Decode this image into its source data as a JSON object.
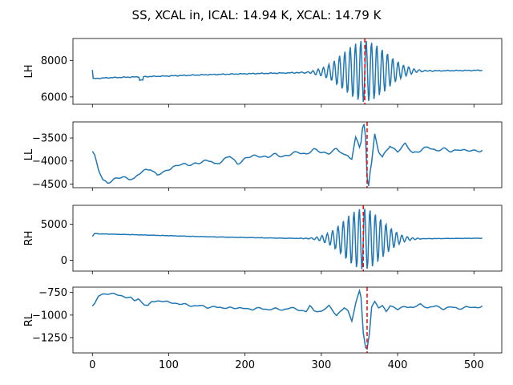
{
  "title": "SS, XCAL in, ICAL: 14.94 K, XCAL: 14.79 K",
  "colors": {
    "series": "#1f77b4",
    "marker": "#ff0000"
  },
  "chart_data": {
    "type": "line",
    "x_range": [
      0,
      511
    ],
    "xlim": [
      -25.5,
      536.5
    ],
    "x_ticks": [
      0,
      100,
      200,
      300,
      400,
      500
    ],
    "grid": false,
    "panels": [
      {
        "name": "LH",
        "ylabel": "LH",
        "ylim": [
          5600,
          9200
        ],
        "y_ticks": [
          6000,
          8000
        ],
        "vline_x": 357,
        "baseline_pts": [
          [
            0,
            7000
          ],
          [
            20,
            7050
          ],
          [
            60,
            7100
          ],
          [
            100,
            7150
          ],
          [
            150,
            7220
          ],
          [
            200,
            7270
          ],
          [
            250,
            7310
          ],
          [
            300,
            7360
          ],
          [
            330,
            7400
          ],
          [
            400,
            7420
          ],
          [
            450,
            7430
          ],
          [
            511,
            7460
          ]
        ],
        "start_spike": 7480,
        "bumps": [
          {
            "x": 64,
            "dy": -180,
            "w": 2
          }
        ],
        "burst": {
          "center": 357,
          "amp": 1700,
          "width": 28,
          "freq": 0.9
        }
      },
      {
        "name": "LL",
        "ylabel": "LL",
        "ylim": [
          -4580,
          -3150
        ],
        "y_ticks": [
          -4500,
          -4000,
          -3500
        ],
        "vline_x": 360,
        "pts": [
          [
            0,
            -3790
          ],
          [
            3,
            -3900
          ],
          [
            8,
            -4200
          ],
          [
            14,
            -4420
          ],
          [
            20,
            -4460
          ],
          [
            28,
            -4400
          ],
          [
            40,
            -4360
          ],
          [
            55,
            -4380
          ],
          [
            60,
            -4300
          ],
          [
            70,
            -4200
          ],
          [
            76,
            -4160
          ],
          [
            85,
            -4300
          ],
          [
            95,
            -4250
          ],
          [
            105,
            -4120
          ],
          [
            115,
            -4070
          ],
          [
            125,
            -4100
          ],
          [
            135,
            -4040
          ],
          [
            145,
            -4020
          ],
          [
            155,
            -4000
          ],
          [
            160,
            -4060
          ],
          [
            170,
            -4000
          ],
          [
            180,
            -3900
          ],
          [
            190,
            -4050
          ],
          [
            200,
            -3950
          ],
          [
            210,
            -3900
          ],
          [
            220,
            -3880
          ],
          [
            230,
            -3920
          ],
          [
            240,
            -3860
          ],
          [
            250,
            -3890
          ],
          [
            260,
            -3860
          ],
          [
            270,
            -3810
          ],
          [
            280,
            -3840
          ],
          [
            290,
            -3760
          ],
          [
            300,
            -3810
          ],
          [
            310,
            -3820
          ],
          [
            320,
            -3750
          ],
          [
            330,
            -3870
          ],
          [
            335,
            -3860
          ],
          [
            340,
            -3950
          ],
          [
            345,
            -3500
          ],
          [
            348,
            -3600
          ],
          [
            350,
            -3700
          ],
          [
            352,
            -3600
          ],
          [
            354,
            -3300
          ],
          [
            356,
            -3220
          ],
          [
            358,
            -3500
          ],
          [
            360,
            -4350
          ],
          [
            362,
            -4510
          ],
          [
            364,
            -4200
          ],
          [
            366,
            -4000
          ],
          [
            370,
            -3420
          ],
          [
            375,
            -3800
          ],
          [
            380,
            -3930
          ],
          [
            390,
            -3650
          ],
          [
            400,
            -3800
          ],
          [
            410,
            -3640
          ],
          [
            420,
            -3810
          ],
          [
            430,
            -3780
          ],
          [
            440,
            -3700
          ],
          [
            450,
            -3760
          ],
          [
            460,
            -3740
          ],
          [
            470,
            -3800
          ],
          [
            480,
            -3730
          ],
          [
            490,
            -3790
          ],
          [
            511,
            -3760
          ]
        ],
        "wiggle": {
          "amp": 35,
          "freq": 0.35
        }
      },
      {
        "name": "RH",
        "ylabel": "RH",
        "ylim": [
          -1500,
          7600
        ],
        "y_ticks": [
          0,
          5000
        ],
        "vline_x": 355,
        "baseline_pts": [
          [
            0,
            3300
          ],
          [
            3,
            3700
          ],
          [
            10,
            3650
          ],
          [
            50,
            3550
          ],
          [
            100,
            3400
          ],
          [
            150,
            3250
          ],
          [
            200,
            3150
          ],
          [
            250,
            3050
          ],
          [
            300,
            3000
          ],
          [
            350,
            2950
          ],
          [
            400,
            2950
          ],
          [
            450,
            3000
          ],
          [
            511,
            3050
          ]
        ],
        "burst": {
          "center": 355,
          "amp": 4300,
          "width": 25,
          "freq": 0.9
        }
      },
      {
        "name": "RL",
        "ylabel": "RL",
        "ylim": [
          -1420,
          -690
        ],
        "y_ticks": [
          -1250,
          -1000,
          -750
        ],
        "vline_x": 360,
        "pts": [
          [
            0,
            -900
          ],
          [
            3,
            -880
          ],
          [
            8,
            -790
          ],
          [
            12,
            -770
          ],
          [
            20,
            -760
          ],
          [
            30,
            -770
          ],
          [
            40,
            -790
          ],
          [
            50,
            -810
          ],
          [
            55,
            -840
          ],
          [
            60,
            -820
          ],
          [
            68,
            -880
          ],
          [
            73,
            -900
          ],
          [
            78,
            -850
          ],
          [
            90,
            -840
          ],
          [
            100,
            -860
          ],
          [
            110,
            -870
          ],
          [
            120,
            -880
          ],
          [
            130,
            -900
          ],
          [
            140,
            -890
          ],
          [
            150,
            -920
          ],
          [
            160,
            -900
          ],
          [
            170,
            -930
          ],
          [
            180,
            -910
          ],
          [
            190,
            -930
          ],
          [
            200,
            -920
          ],
          [
            210,
            -940
          ],
          [
            220,
            -920
          ],
          [
            230,
            -940
          ],
          [
            240,
            -930
          ],
          [
            250,
            -940
          ],
          [
            260,
            -920
          ],
          [
            270,
            -940
          ],
          [
            280,
            -960
          ],
          [
            285,
            -900
          ],
          [
            290,
            -950
          ],
          [
            300,
            -960
          ],
          [
            310,
            -900
          ],
          [
            320,
            -1000
          ],
          [
            330,
            -920
          ],
          [
            335,
            -960
          ],
          [
            340,
            -1060
          ],
          [
            345,
            -870
          ],
          [
            350,
            -730
          ],
          [
            352,
            -800
          ],
          [
            355,
            -1200
          ],
          [
            358,
            -1370
          ],
          [
            360,
            -1380
          ],
          [
            363,
            -1200
          ],
          [
            366,
            -900
          ],
          [
            370,
            -850
          ],
          [
            375,
            -920
          ],
          [
            380,
            -900
          ],
          [
            385,
            -960
          ],
          [
            390,
            -890
          ],
          [
            400,
            -940
          ],
          [
            410,
            -900
          ],
          [
            420,
            -920
          ],
          [
            430,
            -880
          ],
          [
            440,
            -920
          ],
          [
            450,
            -900
          ],
          [
            460,
            -930
          ],
          [
            470,
            -910
          ],
          [
            480,
            -930
          ],
          [
            490,
            -910
          ],
          [
            500,
            -920
          ],
          [
            511,
            -900
          ]
        ],
        "wiggle": {
          "amp": 10,
          "freq": 0.4
        }
      }
    ]
  }
}
